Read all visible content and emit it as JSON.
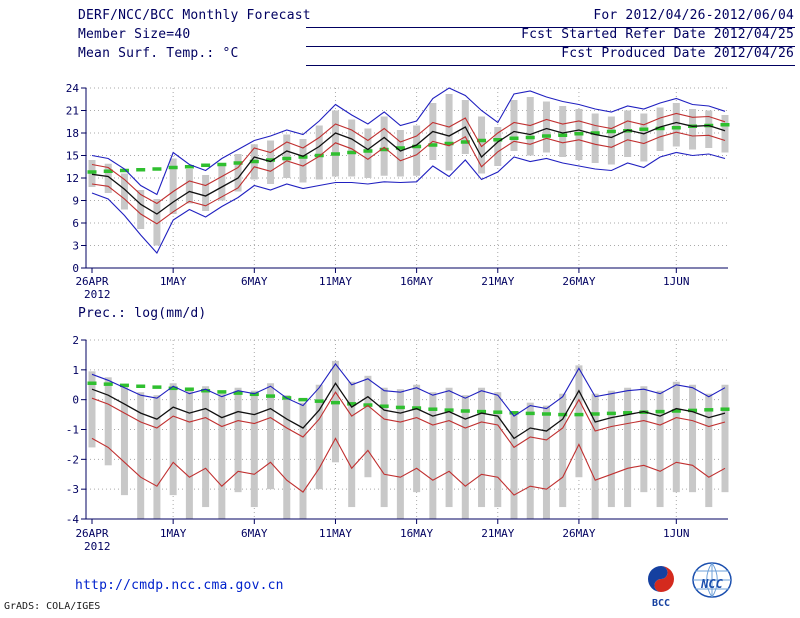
{
  "header": {
    "title": "DERF/NCC/BCC Monthly Forecast",
    "date_range": "For 2012/04/26-2012/06/04",
    "member_size": "Member Size=40",
    "fcst_refer": "Fcst Started Refer Date 2012/04/25",
    "temp_label": "Mean Surf. Temp.: °C",
    "fcst_produced": "Fcst Produced Date 2012/04/26"
  },
  "footer": {
    "url": "http://cmdp.ncc.cma.gov.cn",
    "grads_credit": "GrADS: COLA/IGES",
    "logo_bcc": "BCC",
    "logo_ncc": "NCC"
  },
  "colors": {
    "annotation": "#000060",
    "grid": "#aaaaaa",
    "bar": "#c8c8c8",
    "blue_line": "#2020c0",
    "red_line": "#c03030",
    "black_line": "#101010",
    "green_dash": "#2fbf2f",
    "url_blue": "#0022cc"
  },
  "chart_data": [
    {
      "type": "line",
      "name": "temperature",
      "title": "Mean Surf. Temp.: °C",
      "ylim": [
        0,
        24
      ],
      "yticks": [
        0,
        3,
        6,
        9,
        12,
        15,
        18,
        21,
        24
      ],
      "n_points": 40,
      "x_sub_label": "2012",
      "x_ticks": [
        {
          "label": "26APR",
          "i": 0
        },
        {
          "label": "1MAY",
          "i": 5
        },
        {
          "label": "6MAY",
          "i": 10
        },
        {
          "label": "11MAY",
          "i": 15
        },
        {
          "label": "16MAY",
          "i": 20
        },
        {
          "label": "21MAY",
          "i": 25
        },
        {
          "label": "26MAY",
          "i": 30
        },
        {
          "label": "1JUN",
          "i": 36
        }
      ],
      "series": [
        {
          "name": "ensemble-max",
          "color": "#2020c0",
          "width": 1.1,
          "values": [
            15.0,
            14.6,
            13.2,
            11.0,
            9.8,
            15.4,
            13.8,
            13.0,
            14.6,
            15.8,
            17.0,
            17.6,
            18.4,
            17.8,
            19.6,
            21.8,
            20.4,
            19.2,
            20.8,
            19.0,
            19.6,
            22.6,
            24.0,
            23.0,
            21.0,
            19.4,
            23.2,
            23.6,
            22.8,
            22.2,
            21.8,
            21.2,
            20.8,
            21.6,
            21.2,
            22.0,
            22.6,
            21.8,
            21.6,
            20.9
          ]
        },
        {
          "name": "ensemble-min",
          "color": "#2020c0",
          "width": 1.1,
          "values": [
            10.0,
            9.2,
            7.0,
            4.4,
            2.0,
            6.4,
            7.8,
            6.8,
            8.2,
            9.4,
            11.0,
            10.4,
            11.2,
            10.6,
            11.0,
            11.4,
            11.4,
            11.2,
            11.5,
            11.4,
            11.5,
            13.6,
            12.2,
            14.4,
            11.8,
            12.8,
            14.8,
            14.2,
            14.6,
            14.0,
            13.6,
            13.2,
            13.0,
            14.0,
            13.4,
            14.8,
            15.4,
            15.0,
            15.2,
            14.6
          ]
        },
        {
          "name": "spread-upper",
          "color": "#c03030",
          "width": 1.1,
          "values": [
            13.8,
            13.4,
            11.8,
            9.8,
            8.6,
            10.2,
            11.6,
            11.0,
            12.2,
            13.4,
            16.0,
            15.4,
            16.8,
            16.0,
            17.4,
            19.2,
            18.4,
            17.0,
            18.6,
            16.8,
            17.6,
            19.4,
            18.8,
            20.0,
            16.2,
            18.0,
            19.4,
            19.0,
            19.8,
            19.2,
            19.6,
            19.0,
            18.6,
            19.6,
            19.1,
            20.0,
            20.6,
            20.1,
            20.2,
            19.5
          ]
        },
        {
          "name": "spread-lower",
          "color": "#c03030",
          "width": 1.1,
          "values": [
            11.2,
            10.9,
            9.2,
            7.2,
            5.9,
            7.5,
            8.9,
            8.3,
            9.5,
            10.7,
            13.5,
            12.9,
            14.3,
            13.6,
            14.9,
            16.7,
            15.9,
            14.5,
            16.1,
            14.3,
            15.1,
            16.9,
            16.3,
            17.5,
            13.5,
            15.5,
            16.9,
            16.5,
            17.3,
            16.7,
            17.1,
            16.5,
            16.1,
            17.1,
            16.6,
            17.5,
            18.1,
            17.6,
            17.7,
            17.0
          ]
        },
        {
          "name": "ensemble-mean",
          "color": "#101010",
          "width": 1.3,
          "values": [
            12.5,
            12.2,
            10.5,
            8.5,
            7.2,
            8.8,
            10.2,
            9.6,
            10.8,
            12.0,
            14.8,
            14.2,
            15.6,
            14.9,
            16.2,
            18.0,
            17.2,
            15.8,
            17.4,
            15.6,
            16.4,
            18.2,
            17.6,
            18.8,
            14.8,
            16.8,
            18.2,
            17.8,
            18.6,
            18.0,
            18.4,
            17.8,
            17.4,
            18.4,
            17.9,
            18.8,
            19.4,
            18.9,
            19.0,
            18.3
          ]
        }
      ],
      "climatology": {
        "color": "#2fbf2f",
        "values": [
          12.8,
          12.9,
          13.0,
          13.1,
          13.2,
          13.4,
          13.5,
          13.7,
          13.8,
          14.0,
          14.2,
          14.4,
          14.6,
          14.8,
          15.0,
          15.2,
          15.4,
          15.6,
          15.8,
          16.0,
          16.2,
          16.4,
          16.6,
          16.8,
          17.0,
          17.1,
          17.3,
          17.4,
          17.6,
          17.7,
          17.9,
          18.0,
          18.2,
          18.3,
          18.5,
          18.6,
          18.7,
          18.9,
          19.0,
          19.1
        ]
      },
      "bars": {
        "color": "#c8c8c8",
        "high": [
          14.4,
          13.9,
          12.6,
          10.4,
          9.2,
          14.6,
          13.2,
          12.4,
          14.0,
          15.2,
          16.5,
          17.0,
          17.8,
          17.2,
          19.0,
          21.0,
          19.8,
          18.6,
          20.2,
          18.4,
          19.0,
          22.0,
          23.2,
          22.4,
          20.2,
          18.8,
          22.4,
          22.8,
          22.2,
          21.6,
          21.2,
          20.6,
          20.2,
          21.0,
          20.6,
          21.4,
          22.0,
          21.2,
          21.0,
          20.4
        ],
        "low": [
          10.8,
          10.0,
          7.8,
          5.2,
          3.0,
          7.2,
          8.6,
          7.6,
          9.0,
          10.2,
          11.8,
          11.2,
          12.0,
          11.4,
          11.8,
          12.2,
          12.2,
          12.0,
          12.3,
          12.2,
          12.3,
          14.4,
          13.0,
          15.2,
          12.6,
          13.6,
          15.6,
          15.0,
          15.4,
          14.8,
          14.4,
          14.0,
          13.8,
          14.8,
          14.2,
          15.6,
          16.2,
          15.8,
          16.0,
          15.4
        ]
      }
    },
    {
      "type": "line",
      "name": "precipitation",
      "title": "Prec.: log(mm/d)",
      "ylim": [
        -4,
        2
      ],
      "yticks": [
        -4,
        -3,
        -2,
        -1,
        0,
        1,
        2
      ],
      "n_points": 40,
      "x_sub_label": "2012",
      "x_ticks": [
        {
          "label": "26APR",
          "i": 0
        },
        {
          "label": "1MAY",
          "i": 5
        },
        {
          "label": "6MAY",
          "i": 10
        },
        {
          "label": "11MAY",
          "i": 15
        },
        {
          "label": "16MAY",
          "i": 20
        },
        {
          "label": "21MAY",
          "i": 25
        },
        {
          "label": "26MAY",
          "i": 30
        },
        {
          "label": "1JUN",
          "i": 36
        }
      ],
      "series": [
        {
          "name": "ensemble-max",
          "color": "#2020c0",
          "width": 1.1,
          "values": [
            0.85,
            0.65,
            0.4,
            0.15,
            0.05,
            0.45,
            0.2,
            0.35,
            0.1,
            0.3,
            0.2,
            0.45,
            0.05,
            -0.2,
            0.4,
            1.2,
            0.5,
            0.7,
            0.3,
            0.25,
            0.4,
            0.15,
            0.3,
            0.05,
            0.3,
            0.15,
            -0.55,
            -0.2,
            -0.3,
            0.1,
            1.05,
            0.1,
            0.2,
            0.3,
            0.35,
            0.2,
            0.5,
            0.4,
            0.1,
            0.4
          ]
        },
        {
          "name": "spread-upper",
          "color": "#c03030",
          "width": 1.1,
          "values": [
            0.05,
            -0.15,
            -0.45,
            -0.75,
            -0.95,
            -0.55,
            -0.75,
            -0.6,
            -0.9,
            -0.7,
            -0.8,
            -0.6,
            -0.95,
            -1.25,
            -0.65,
            0.25,
            -0.55,
            -0.2,
            -0.65,
            -0.75,
            -0.6,
            -0.85,
            -0.7,
            -0.95,
            -0.75,
            -0.85,
            -1.6,
            -1.25,
            -1.35,
            -0.95,
            0.0,
            -1.05,
            -0.9,
            -0.8,
            -0.7,
            -0.85,
            -0.6,
            -0.7,
            -0.9,
            -0.75
          ]
        },
        {
          "name": "spread-lower",
          "color": "#c03030",
          "width": 1.1,
          "values": [
            -1.3,
            -1.6,
            -2.1,
            -2.6,
            -2.9,
            -2.1,
            -2.6,
            -2.3,
            -2.9,
            -2.4,
            -2.5,
            -2.1,
            -2.7,
            -3.1,
            -2.3,
            -1.3,
            -2.3,
            -1.7,
            -2.5,
            -2.6,
            -2.3,
            -2.7,
            -2.4,
            -2.9,
            -2.5,
            -2.6,
            -3.2,
            -2.9,
            -3.0,
            -2.6,
            -1.5,
            -2.7,
            -2.5,
            -2.3,
            -2.2,
            -2.4,
            -2.1,
            -2.2,
            -2.6,
            -2.3
          ]
        },
        {
          "name": "ensemble-mean",
          "color": "#101010",
          "width": 1.3,
          "values": [
            0.35,
            0.15,
            -0.15,
            -0.45,
            -0.65,
            -0.25,
            -0.45,
            -0.3,
            -0.6,
            -0.4,
            -0.5,
            -0.3,
            -0.65,
            -0.95,
            -0.35,
            0.55,
            -0.25,
            0.1,
            -0.35,
            -0.45,
            -0.3,
            -0.55,
            -0.4,
            -0.65,
            -0.45,
            -0.55,
            -1.3,
            -0.95,
            -1.05,
            -0.65,
            0.3,
            -0.75,
            -0.6,
            -0.5,
            -0.4,
            -0.55,
            -0.3,
            -0.4,
            -0.6,
            -0.45
          ]
        }
      ],
      "climatology": {
        "color": "#2fbf2f",
        "values": [
          0.55,
          0.52,
          0.48,
          0.45,
          0.42,
          0.38,
          0.35,
          0.3,
          0.26,
          0.22,
          0.18,
          0.12,
          0.06,
          0.0,
          -0.05,
          -0.1,
          -0.14,
          -0.18,
          -0.22,
          -0.26,
          -0.28,
          -0.32,
          -0.35,
          -0.38,
          -0.4,
          -0.42,
          -0.44,
          -0.46,
          -0.48,
          -0.5,
          -0.5,
          -0.48,
          -0.46,
          -0.44,
          -0.42,
          -0.4,
          -0.38,
          -0.36,
          -0.34,
          -0.32
        ]
      },
      "bars": {
        "color": "#c8c8c8",
        "high": [
          0.95,
          0.75,
          0.5,
          0.25,
          0.15,
          0.55,
          0.3,
          0.45,
          0.2,
          0.4,
          0.3,
          0.55,
          0.15,
          -0.1,
          0.5,
          1.3,
          0.6,
          0.8,
          0.4,
          0.35,
          0.5,
          0.25,
          0.4,
          0.15,
          0.4,
          0.25,
          -0.45,
          -0.1,
          -0.2,
          0.2,
          1.15,
          0.2,
          0.3,
          0.4,
          0.45,
          0.3,
          0.6,
          0.5,
          0.2,
          0.5
        ],
        "low": [
          -1.6,
          -2.2,
          -3.2,
          -4.0,
          -4.0,
          -3.2,
          -4.0,
          -3.6,
          -4.0,
          -3.1,
          -3.6,
          -3.0,
          -4.0,
          -4.0,
          -3.0,
          -2.1,
          -3.6,
          -2.6,
          -3.6,
          -4.0,
          -3.1,
          -4.0,
          -3.6,
          -4.0,
          -3.6,
          -3.6,
          -4.0,
          -4.0,
          -4.0,
          -3.6,
          -2.6,
          -4.0,
          -3.6,
          -3.6,
          -3.1,
          -3.6,
          -3.1,
          -3.1,
          -3.6,
          -3.1
        ]
      }
    }
  ]
}
